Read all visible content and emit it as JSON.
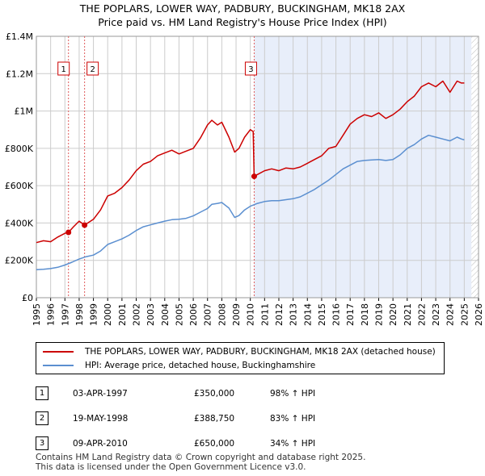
{
  "title_line1": "THE POPLARS, LOWER WAY, PADBURY, BUCKINGHAM, MK18 2AX",
  "title_line2": "Price paid vs. HM Land Registry's House Price Index (HPI)",
  "colors": {
    "property": "#cc0000",
    "hpi": "#5b8fd0",
    "shade": "#e8eefa",
    "grid": "#cccccc",
    "marker_line": "#e05c5c"
  },
  "chart_data": {
    "type": "line",
    "title": "THE POPLARS, LOWER WAY, PADBURY, BUCKINGHAM, MK18 2AX — Price paid vs. HM Land Registry's House Price Index (HPI)",
    "xlim": [
      1995,
      2026
    ],
    "ylim": [
      0,
      1400000
    ],
    "y_ticks": [
      {
        "value": 0,
        "label": "£0"
      },
      {
        "value": 200000,
        "label": "£200K"
      },
      {
        "value": 400000,
        "label": "£400K"
      },
      {
        "value": 600000,
        "label": "£600K"
      },
      {
        "value": 800000,
        "label": "£800K"
      },
      {
        "value": 1000000,
        "label": "£1M"
      },
      {
        "value": 1200000,
        "label": "£1.2M"
      },
      {
        "value": 1400000,
        "label": "£1.4M"
      }
    ],
    "x_ticks": [
      "1995",
      "1996",
      "1997",
      "1998",
      "1999",
      "2000",
      "2001",
      "2002",
      "2003",
      "2004",
      "2005",
      "2006",
      "2007",
      "2008",
      "2009",
      "2010",
      "2011",
      "2012",
      "2013",
      "2014",
      "2015",
      "2016",
      "2017",
      "2018",
      "2019",
      "2020",
      "2021",
      "2022",
      "2023",
      "2024",
      "2025",
      "2026"
    ],
    "shaded_ranges": [
      [
        2010.27,
        2025.5
      ]
    ],
    "hatched_range": [
      2025.5,
      2026
    ],
    "series": [
      {
        "name": "THE POPLARS, LOWER WAY, PADBURY, BUCKINGHAM, MK18 2AX (detached house)",
        "color": "#cc0000",
        "x": [
          1995,
          1995.5,
          1996,
          1996.5,
          1997,
          1997.25,
          1997.6,
          1998,
          1998.38,
          1998.7,
          1999,
          1999.5,
          2000,
          2000.5,
          2001,
          2001.5,
          2002,
          2002.5,
          2003,
          2003.5,
          2004,
          2004.5,
          2005,
          2005.5,
          2006,
          2006.5,
          2007,
          2007.3,
          2007.7,
          2008,
          2008.5,
          2008.9,
          2009.2,
          2009.6,
          2010,
          2010.2,
          2010.27,
          2010.5,
          2011,
          2011.5,
          2012,
          2012.5,
          2013,
          2013.5,
          2014,
          2014.5,
          2015,
          2015.5,
          2016,
          2016.5,
          2017,
          2017.5,
          2018,
          2018.5,
          2019,
          2019.5,
          2020,
          2020.5,
          2021,
          2021.5,
          2022,
          2022.5,
          2023,
          2023.5,
          2024,
          2024.5,
          2024.8,
          2025
        ],
        "values": [
          295000,
          305000,
          300000,
          325000,
          345000,
          350000,
          380000,
          410000,
          388750,
          405000,
          420000,
          470000,
          545000,
          560000,
          590000,
          630000,
          680000,
          715000,
          730000,
          760000,
          775000,
          790000,
          770000,
          785000,
          800000,
          855000,
          925000,
          950000,
          925000,
          940000,
          860000,
          780000,
          800000,
          860000,
          900000,
          890000,
          650000,
          660000,
          680000,
          690000,
          680000,
          695000,
          690000,
          700000,
          720000,
          740000,
          760000,
          800000,
          810000,
          870000,
          930000,
          960000,
          980000,
          970000,
          990000,
          960000,
          980000,
          1010000,
          1050000,
          1080000,
          1130000,
          1150000,
          1130000,
          1160000,
          1100000,
          1160000,
          1150000,
          1150000
        ]
      },
      {
        "name": "HPI: Average price, detached house, Buckinghamshire",
        "color": "#5b8fd0",
        "x": [
          1995,
          1995.5,
          1996,
          1996.5,
          1997,
          1997.5,
          1998,
          1998.5,
          1999,
          1999.5,
          2000,
          2000.5,
          2001,
          2001.5,
          2002,
          2002.5,
          2003,
          2003.5,
          2004,
          2004.5,
          2005,
          2005.5,
          2006,
          2006.5,
          2007,
          2007.3,
          2007.7,
          2008,
          2008.5,
          2008.9,
          2009.2,
          2009.6,
          2010,
          2010.5,
          2011,
          2011.5,
          2012,
          2012.5,
          2013,
          2013.5,
          2014,
          2014.5,
          2015,
          2015.5,
          2016,
          2016.5,
          2017,
          2017.5,
          2018,
          2018.5,
          2019,
          2019.5,
          2020,
          2020.5,
          2021,
          2021.5,
          2022,
          2022.5,
          2023,
          2023.5,
          2024,
          2024.5,
          2024.8,
          2025
        ],
        "values": [
          150000,
          152000,
          156000,
          163000,
          175000,
          190000,
          207000,
          220000,
          228000,
          250000,
          285000,
          300000,
          315000,
          335000,
          360000,
          380000,
          390000,
          400000,
          410000,
          418000,
          420000,
          425000,
          438000,
          458000,
          478000,
          500000,
          505000,
          510000,
          480000,
          430000,
          440000,
          470000,
          490000,
          505000,
          515000,
          520000,
          520000,
          525000,
          530000,
          540000,
          560000,
          580000,
          605000,
          630000,
          660000,
          690000,
          710000,
          730000,
          735000,
          738000,
          740000,
          735000,
          740000,
          765000,
          800000,
          820000,
          850000,
          870000,
          860000,
          850000,
          840000,
          860000,
          850000,
          845000
        ]
      }
    ],
    "sales": [
      {
        "num": "1",
        "x": 1997.25,
        "value": 350000
      },
      {
        "num": "2",
        "x": 1998.38,
        "value": 388750
      },
      {
        "num": "3",
        "x": 2010.27,
        "value": 650000
      }
    ]
  },
  "legend": {
    "property_label": "THE POPLARS, LOWER WAY, PADBURY, BUCKINGHAM, MK18 2AX (detached house)",
    "hpi_label": "HPI: Average price, detached house, Buckinghamshire"
  },
  "sales_table": [
    {
      "num": "1",
      "date": "03-APR-1997",
      "price": "£350,000",
      "hpi": "98% ↑ HPI"
    },
    {
      "num": "2",
      "date": "19-MAY-1998",
      "price": "£388,750",
      "hpi": "83% ↑ HPI"
    },
    {
      "num": "3",
      "date": "09-APR-2010",
      "price": "£650,000",
      "hpi": "34% ↑ HPI"
    }
  ],
  "footer_line1": "Contains HM Land Registry data © Crown copyright and database right 2025.",
  "footer_line2": "This data is licensed under the Open Government Licence v3.0."
}
